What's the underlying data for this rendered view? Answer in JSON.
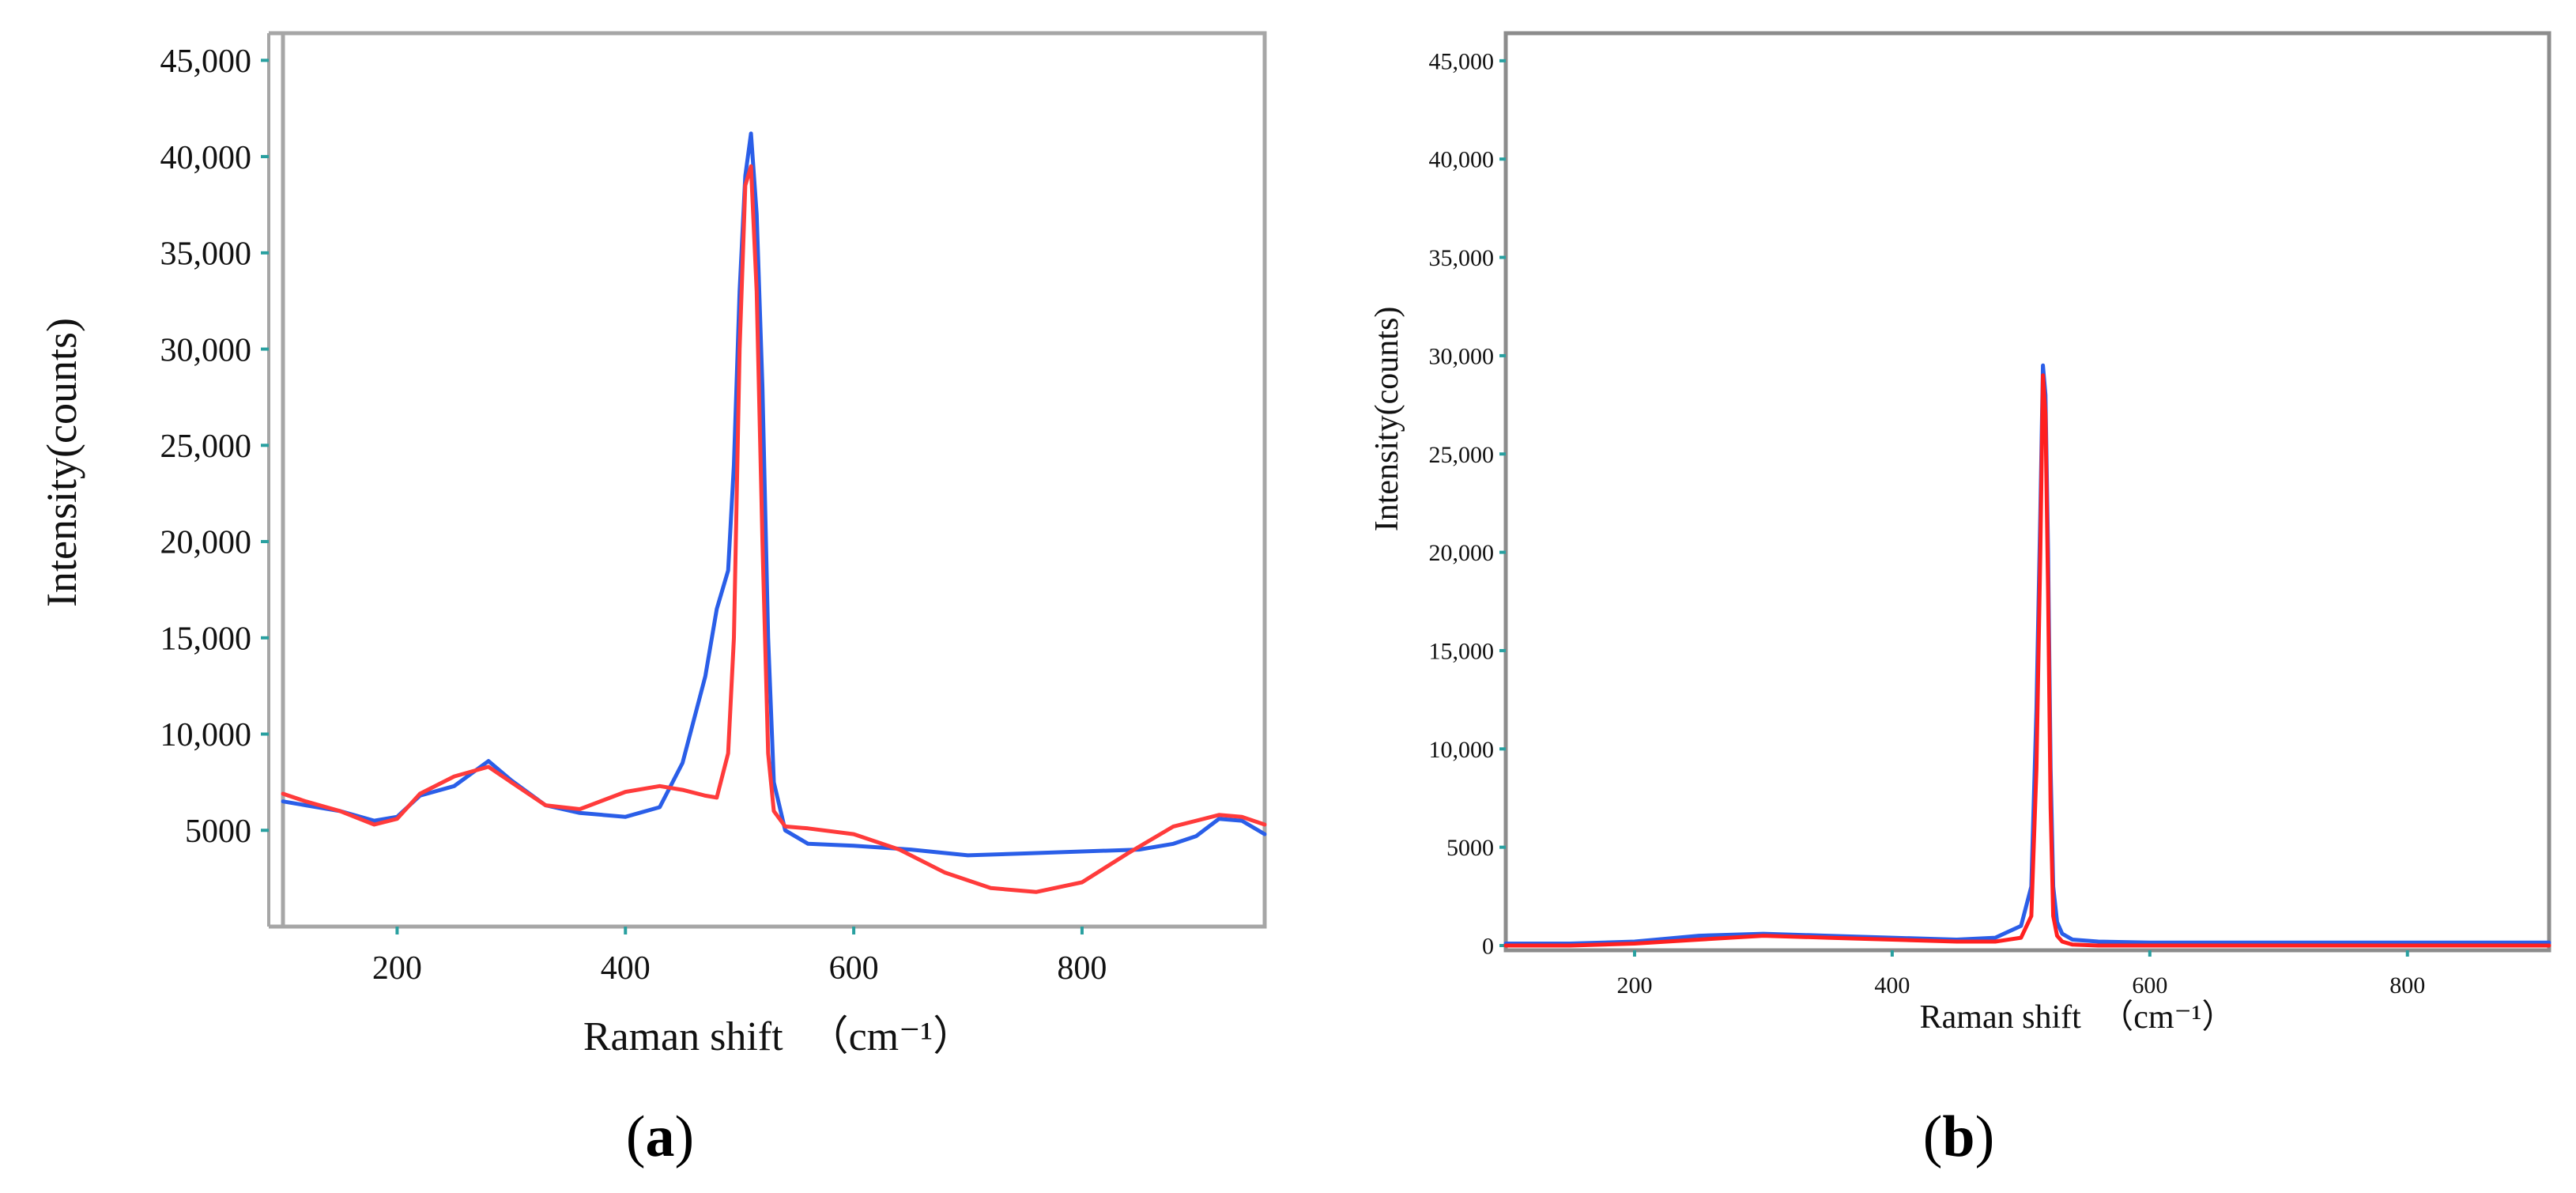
{
  "chart_data": [
    {
      "panel": "a",
      "type": "line",
      "xlabel": "Raman shift",
      "xunit": "（cm⁻¹）",
      "ylabel": "Intensity(counts)",
      "xlim": [
        100,
        960
      ],
      "ylim": [
        0,
        46000
      ],
      "x_ticks": [
        200,
        400,
        600,
        800
      ],
      "x_tick_labels": [
        "200",
        "400",
        "600",
        "800"
      ],
      "y_ticks": [
        5000,
        10000,
        15000,
        20000,
        25000,
        30000,
        35000,
        40000,
        45000
      ],
      "y_tick_labels": [
        "5000",
        "10,000",
        "15,000",
        "20,000",
        "25,000",
        "30,000",
        "35,000",
        "40,000",
        "45,000"
      ],
      "grid": false,
      "series": [
        {
          "name": "blue",
          "color": "#2a5ee8",
          "x": [
            100,
            120,
            150,
            180,
            200,
            220,
            250,
            280,
            300,
            330,
            360,
            400,
            430,
            450,
            470,
            480,
            490,
            495,
            500,
            505,
            510,
            515,
            520,
            525,
            530,
            540,
            560,
            600,
            650,
            700,
            750,
            800,
            850,
            880,
            900,
            920,
            940,
            960
          ],
          "y": [
            6500,
            6300,
            6000,
            5500,
            5700,
            6800,
            7300,
            8600,
            7600,
            6300,
            5900,
            5700,
            6200,
            8500,
            13000,
            16500,
            18500,
            24000,
            33000,
            39000,
            41200,
            37000,
            28000,
            15000,
            7500,
            5000,
            4300,
            4200,
            4000,
            3700,
            3800,
            3900,
            4000,
            4300,
            4700,
            5600,
            5500,
            4800
          ]
        },
        {
          "name": "red",
          "color": "#ff3b3b",
          "x": [
            100,
            120,
            150,
            180,
            200,
            220,
            250,
            280,
            300,
            330,
            360,
            400,
            430,
            450,
            470,
            480,
            490,
            495,
            500,
            505,
            510,
            515,
            520,
            525,
            530,
            540,
            560,
            600,
            640,
            680,
            720,
            760,
            800,
            840,
            880,
            920,
            940,
            960
          ],
          "y": [
            6900,
            6500,
            6000,
            5300,
            5600,
            6900,
            7800,
            8300,
            7500,
            6300,
            6100,
            7000,
            7300,
            7100,
            6800,
            6700,
            9000,
            15000,
            30000,
            38500,
            39500,
            33000,
            20000,
            9000,
            6000,
            5200,
            5100,
            4800,
            4000,
            2800,
            2000,
            1800,
            2300,
            3800,
            5200,
            5800,
            5700,
            5300
          ]
        }
      ]
    },
    {
      "panel": "b",
      "type": "line",
      "xlabel": "Raman shift",
      "xunit": "（cm⁻¹）",
      "ylabel": "Intensity(counts)",
      "xlim": [
        100,
        910
      ],
      "ylim": [
        0,
        46000
      ],
      "x_ticks": [
        200,
        400,
        600,
        800
      ],
      "x_tick_labels": [
        "200",
        "400",
        "600",
        "800"
      ],
      "y_ticks": [
        0,
        5000,
        10000,
        15000,
        20000,
        25000,
        30000,
        35000,
        40000,
        45000
      ],
      "y_tick_labels": [
        "0",
        "5000",
        "10,000",
        "15,000",
        "20,000",
        "25,000",
        "30,000",
        "35,000",
        "40,000",
        "45,000"
      ],
      "grid": false,
      "series": [
        {
          "name": "blue",
          "color": "#2a5ee8",
          "x": [
            100,
            150,
            200,
            250,
            300,
            350,
            400,
            450,
            480,
            500,
            508,
            512,
            515,
            517,
            519,
            521,
            523,
            525,
            528,
            532,
            540,
            560,
            600,
            700,
            800,
            910
          ],
          "y": [
            100,
            100,
            200,
            500,
            600,
            500,
            400,
            300,
            400,
            1000,
            3000,
            12000,
            22000,
            29500,
            28000,
            20000,
            9000,
            3000,
            1200,
            600,
            300,
            200,
            150,
            150,
            150,
            150
          ]
        },
        {
          "name": "red",
          "color": "#ff2020",
          "x": [
            100,
            150,
            200,
            250,
            300,
            350,
            400,
            450,
            480,
            500,
            508,
            512,
            515,
            517,
            519,
            521,
            523,
            525,
            528,
            532,
            540,
            560,
            600,
            700,
            800,
            910
          ],
          "y": [
            0,
            0,
            100,
            300,
            500,
            400,
            300,
            200,
            200,
            400,
            1500,
            9000,
            20000,
            29000,
            27000,
            18000,
            7000,
            1500,
            500,
            200,
            50,
            0,
            0,
            0,
            0,
            0
          ]
        }
      ]
    }
  ],
  "panel_labels": [
    {
      "left": "(",
      "letter": "a",
      "right": ")"
    },
    {
      "left": "(",
      "letter": "b",
      "right": ")"
    }
  ]
}
